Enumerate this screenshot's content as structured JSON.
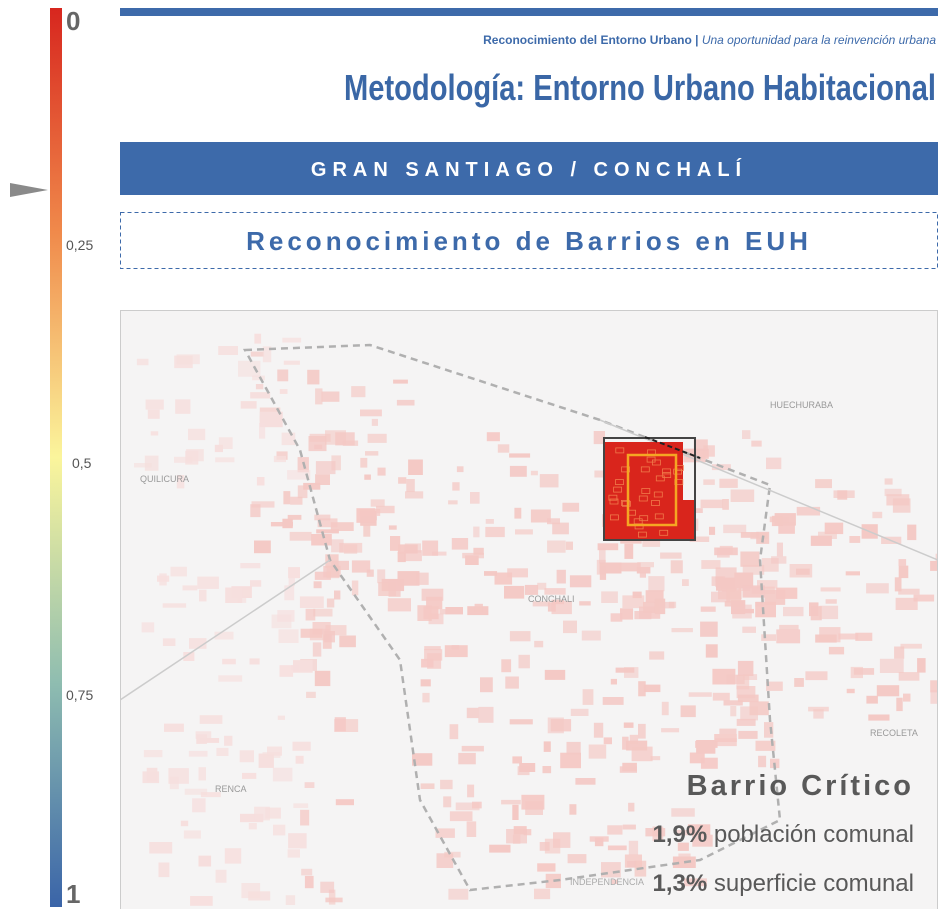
{
  "scale": {
    "labels": [
      "0",
      "0,25",
      "0,5",
      "0,75",
      "1"
    ]
  },
  "header": {
    "source": "Reconocimiento del Entorno Urbano |",
    "tagline": "Una oportunidad para la reinvención urbana",
    "title": "Metodología: Entorno Urbano Habitacional"
  },
  "banner": "GRAN SANTIAGO / CONCHALÍ",
  "section": "Reconocimiento de Barrios en EUH",
  "map": {
    "places": [
      "HUECHURABA",
      "QUILICURA",
      "CONCHALI",
      "RECOLETA",
      "RENCA",
      "INDEPENDENCIA"
    ]
  },
  "info": {
    "title": "Barrio Crítico",
    "population_value": "1,9%",
    "population_text": "población comunal",
    "area_value": "1,3%",
    "area_text": "superficie comunal"
  }
}
